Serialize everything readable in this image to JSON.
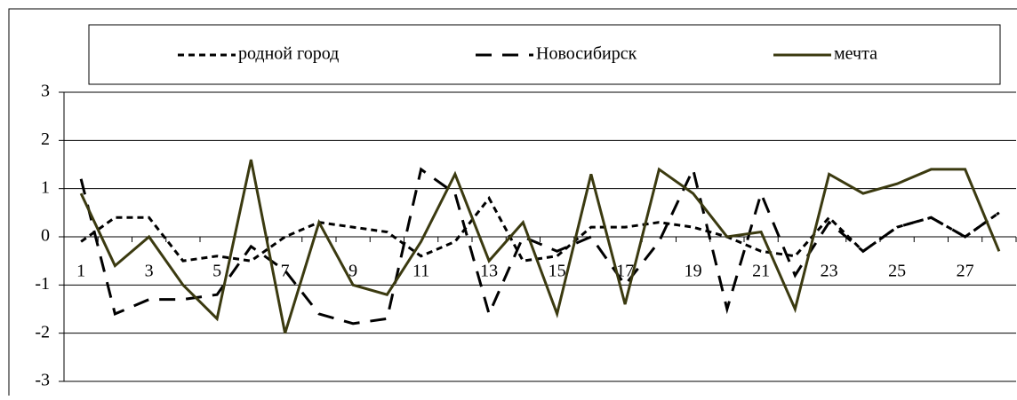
{
  "chart_data": {
    "type": "line",
    "categories": [
      "1",
      null,
      "3",
      null,
      "5",
      null,
      "7",
      null,
      "9",
      null,
      "11",
      null,
      "13",
      null,
      "15",
      null,
      "17",
      null,
      "19",
      null,
      "21",
      null,
      "23",
      null,
      "25",
      null,
      "27",
      null
    ],
    "series": [
      {
        "name": "родной город",
        "color": "#000000",
        "dash": "short",
        "values": [
          -0.1,
          0.4,
          0.4,
          -0.5,
          -0.4,
          -0.5,
          0,
          0.3,
          0.2,
          0.1,
          -0.4,
          -0.1,
          0.8,
          -0.5,
          -0.4,
          0.2,
          0.2,
          0.3,
          0.2,
          0,
          -0.3,
          -0.4,
          0.4,
          -0.3,
          0.2,
          0.4,
          0,
          0.5
        ]
      },
      {
        "name": "Новосибирск",
        "color": "#000000",
        "dash": "long",
        "values": [
          1.2,
          -1.6,
          -1.3,
          -1.3,
          -1.2,
          -0.2,
          -0.7,
          -1.6,
          -1.8,
          -1.7,
          1.4,
          0.9,
          -1.6,
          0,
          -0.3,
          0,
          -1,
          -0.1,
          1.4,
          -1.5,
          0.9,
          -0.8,
          0.3,
          -0.3,
          0.2,
          0.4,
          0,
          0.5
        ]
      },
      {
        "name": "мечта",
        "color": "#3b3a10",
        "dash": "solid",
        "values": [
          0.9,
          -0.6,
          0,
          -1,
          -1.7,
          1.6,
          -2,
          0.3,
          -1,
          -1.2,
          -0.1,
          1.3,
          -0.5,
          0.3,
          -1.6,
          1.3,
          -1.4,
          1.4,
          0.9,
          0,
          0.1,
          -1.5,
          1.3,
          0.9,
          1.1,
          1.4,
          1.4,
          -0.3
        ]
      }
    ],
    "ylim": [
      -3,
      3
    ],
    "yticks": [
      -3,
      -2,
      -1,
      0,
      1,
      2,
      3
    ],
    "grid": true
  }
}
